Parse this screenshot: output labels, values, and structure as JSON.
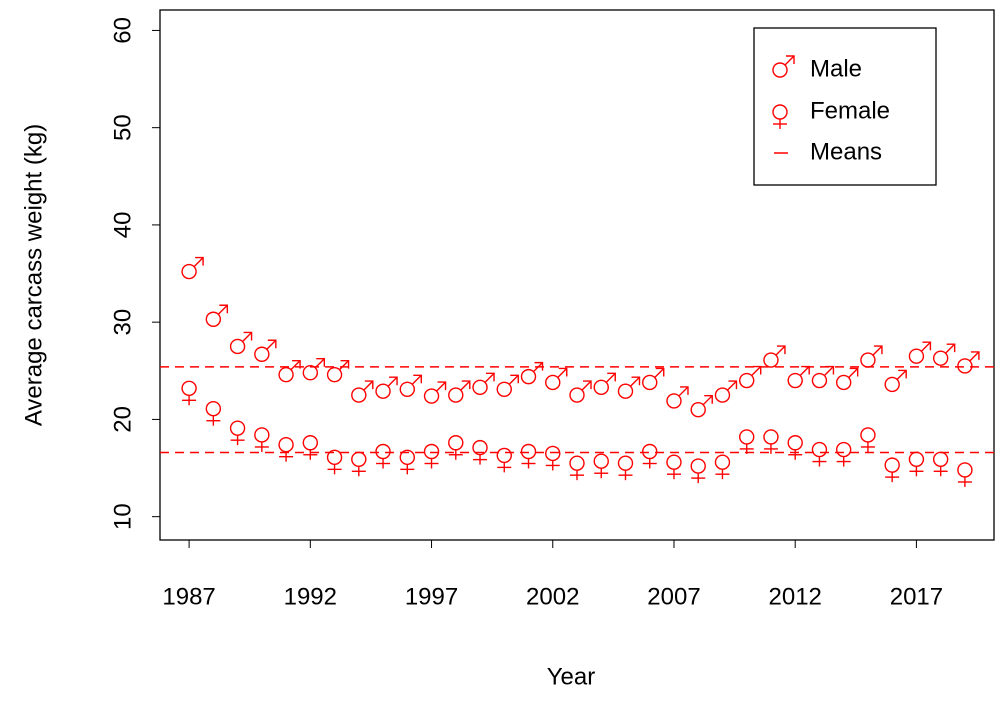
{
  "chart_data": {
    "type": "scatter",
    "x_label": "Year",
    "y_label": "Average carcass weight (kg)",
    "x": [
      1987,
      1988,
      1989,
      1990,
      1991,
      1992,
      1993,
      1994,
      1995,
      1996,
      1997,
      1998,
      1999,
      2000,
      2001,
      2002,
      2003,
      2004,
      2005,
      2006,
      2007,
      2008,
      2009,
      2010,
      2011,
      2012,
      2013,
      2014,
      2015,
      2016,
      2017,
      2018,
      2019
    ],
    "series": [
      {
        "name": "Male",
        "color": "#ff0000",
        "symbol": "male",
        "values": [
          35.2,
          30.3,
          27.5,
          26.7,
          24.6,
          24.8,
          24.6,
          22.5,
          22.9,
          23.1,
          22.4,
          22.5,
          23.3,
          23.1,
          24.4,
          23.8,
          22.5,
          23.3,
          22.9,
          23.8,
          21.9,
          21.0,
          22.5,
          24.0,
          26.1,
          24.0,
          24.0,
          23.8,
          26.1,
          23.6,
          26.5,
          26.3,
          25.5
        ]
      },
      {
        "name": "Female",
        "color": "#ff0000",
        "symbol": "female",
        "values": [
          23.2,
          21.1,
          19.1,
          18.4,
          17.4,
          17.6,
          16.1,
          15.9,
          16.7,
          16.1,
          16.7,
          17.6,
          17.1,
          16.3,
          16.7,
          16.5,
          15.5,
          15.7,
          15.5,
          16.7,
          15.6,
          15.2,
          15.6,
          18.2,
          18.2,
          17.6,
          16.9,
          16.9,
          18.4,
          15.3,
          15.9,
          15.9,
          14.8
        ]
      }
    ],
    "reference_lines": {
      "name": "Means",
      "color": "#ff0000",
      "values": [
        25.4,
        16.6
      ]
    },
    "xlim": [
      1985.8,
      2020.2
    ],
    "ylim": [
      7.6,
      62.1
    ],
    "xticks": [
      1987,
      1992,
      1997,
      2002,
      2007,
      2012,
      2017
    ],
    "yticks": [
      10,
      20,
      30,
      40,
      50,
      60
    ],
    "legend": "top-right"
  }
}
